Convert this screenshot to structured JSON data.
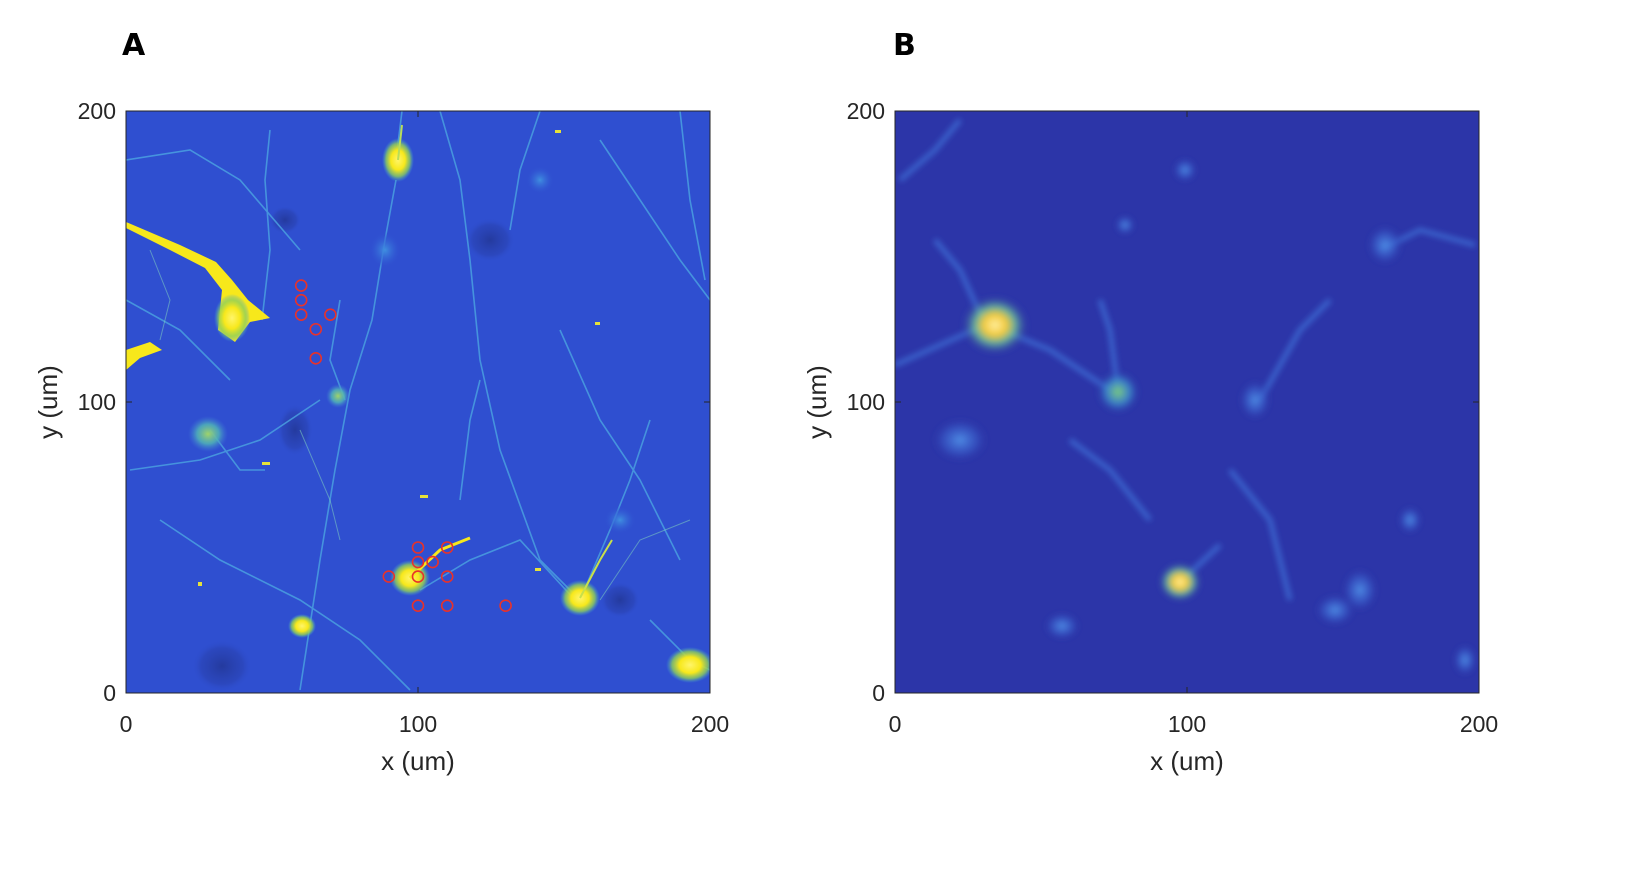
{
  "panels": [
    {
      "letter": "A",
      "xlabel": "x (um)",
      "ylabel": "y (um)",
      "xlim": [
        0,
        200
      ],
      "ylim": [
        0,
        200
      ],
      "xticks": [
        "0",
        "100",
        "200"
      ],
      "yticks": [
        "0",
        "100",
        "200"
      ],
      "marker_color": "#e8322a",
      "markers": [
        {
          "x": 60,
          "y": 140
        },
        {
          "x": 60,
          "y": 135
        },
        {
          "x": 60,
          "y": 130
        },
        {
          "x": 70,
          "y": 130
        },
        {
          "x": 65,
          "y": 125
        },
        {
          "x": 65,
          "y": 115
        },
        {
          "x": 100,
          "y": 50
        },
        {
          "x": 110,
          "y": 50
        },
        {
          "x": 100,
          "y": 45
        },
        {
          "x": 105,
          "y": 45
        },
        {
          "x": 90,
          "y": 40
        },
        {
          "x": 100,
          "y": 40
        },
        {
          "x": 110,
          "y": 40
        },
        {
          "x": 100,
          "y": 30
        },
        {
          "x": 110,
          "y": 30
        },
        {
          "x": 130,
          "y": 30
        }
      ]
    },
    {
      "letter": "B",
      "xlabel": "x (um)",
      "ylabel": "y (um)",
      "xlim": [
        0,
        200
      ],
      "ylim": [
        0,
        200
      ],
      "xticks": [
        "0",
        "100",
        "200"
      ],
      "yticks": [
        "0",
        "100",
        "200"
      ]
    }
  ],
  "colors": {
    "background_a": "#2f4fd0",
    "background_b": "#2c35a8",
    "hot": "#f7e81b",
    "mid": "#3fa6d8"
  }
}
